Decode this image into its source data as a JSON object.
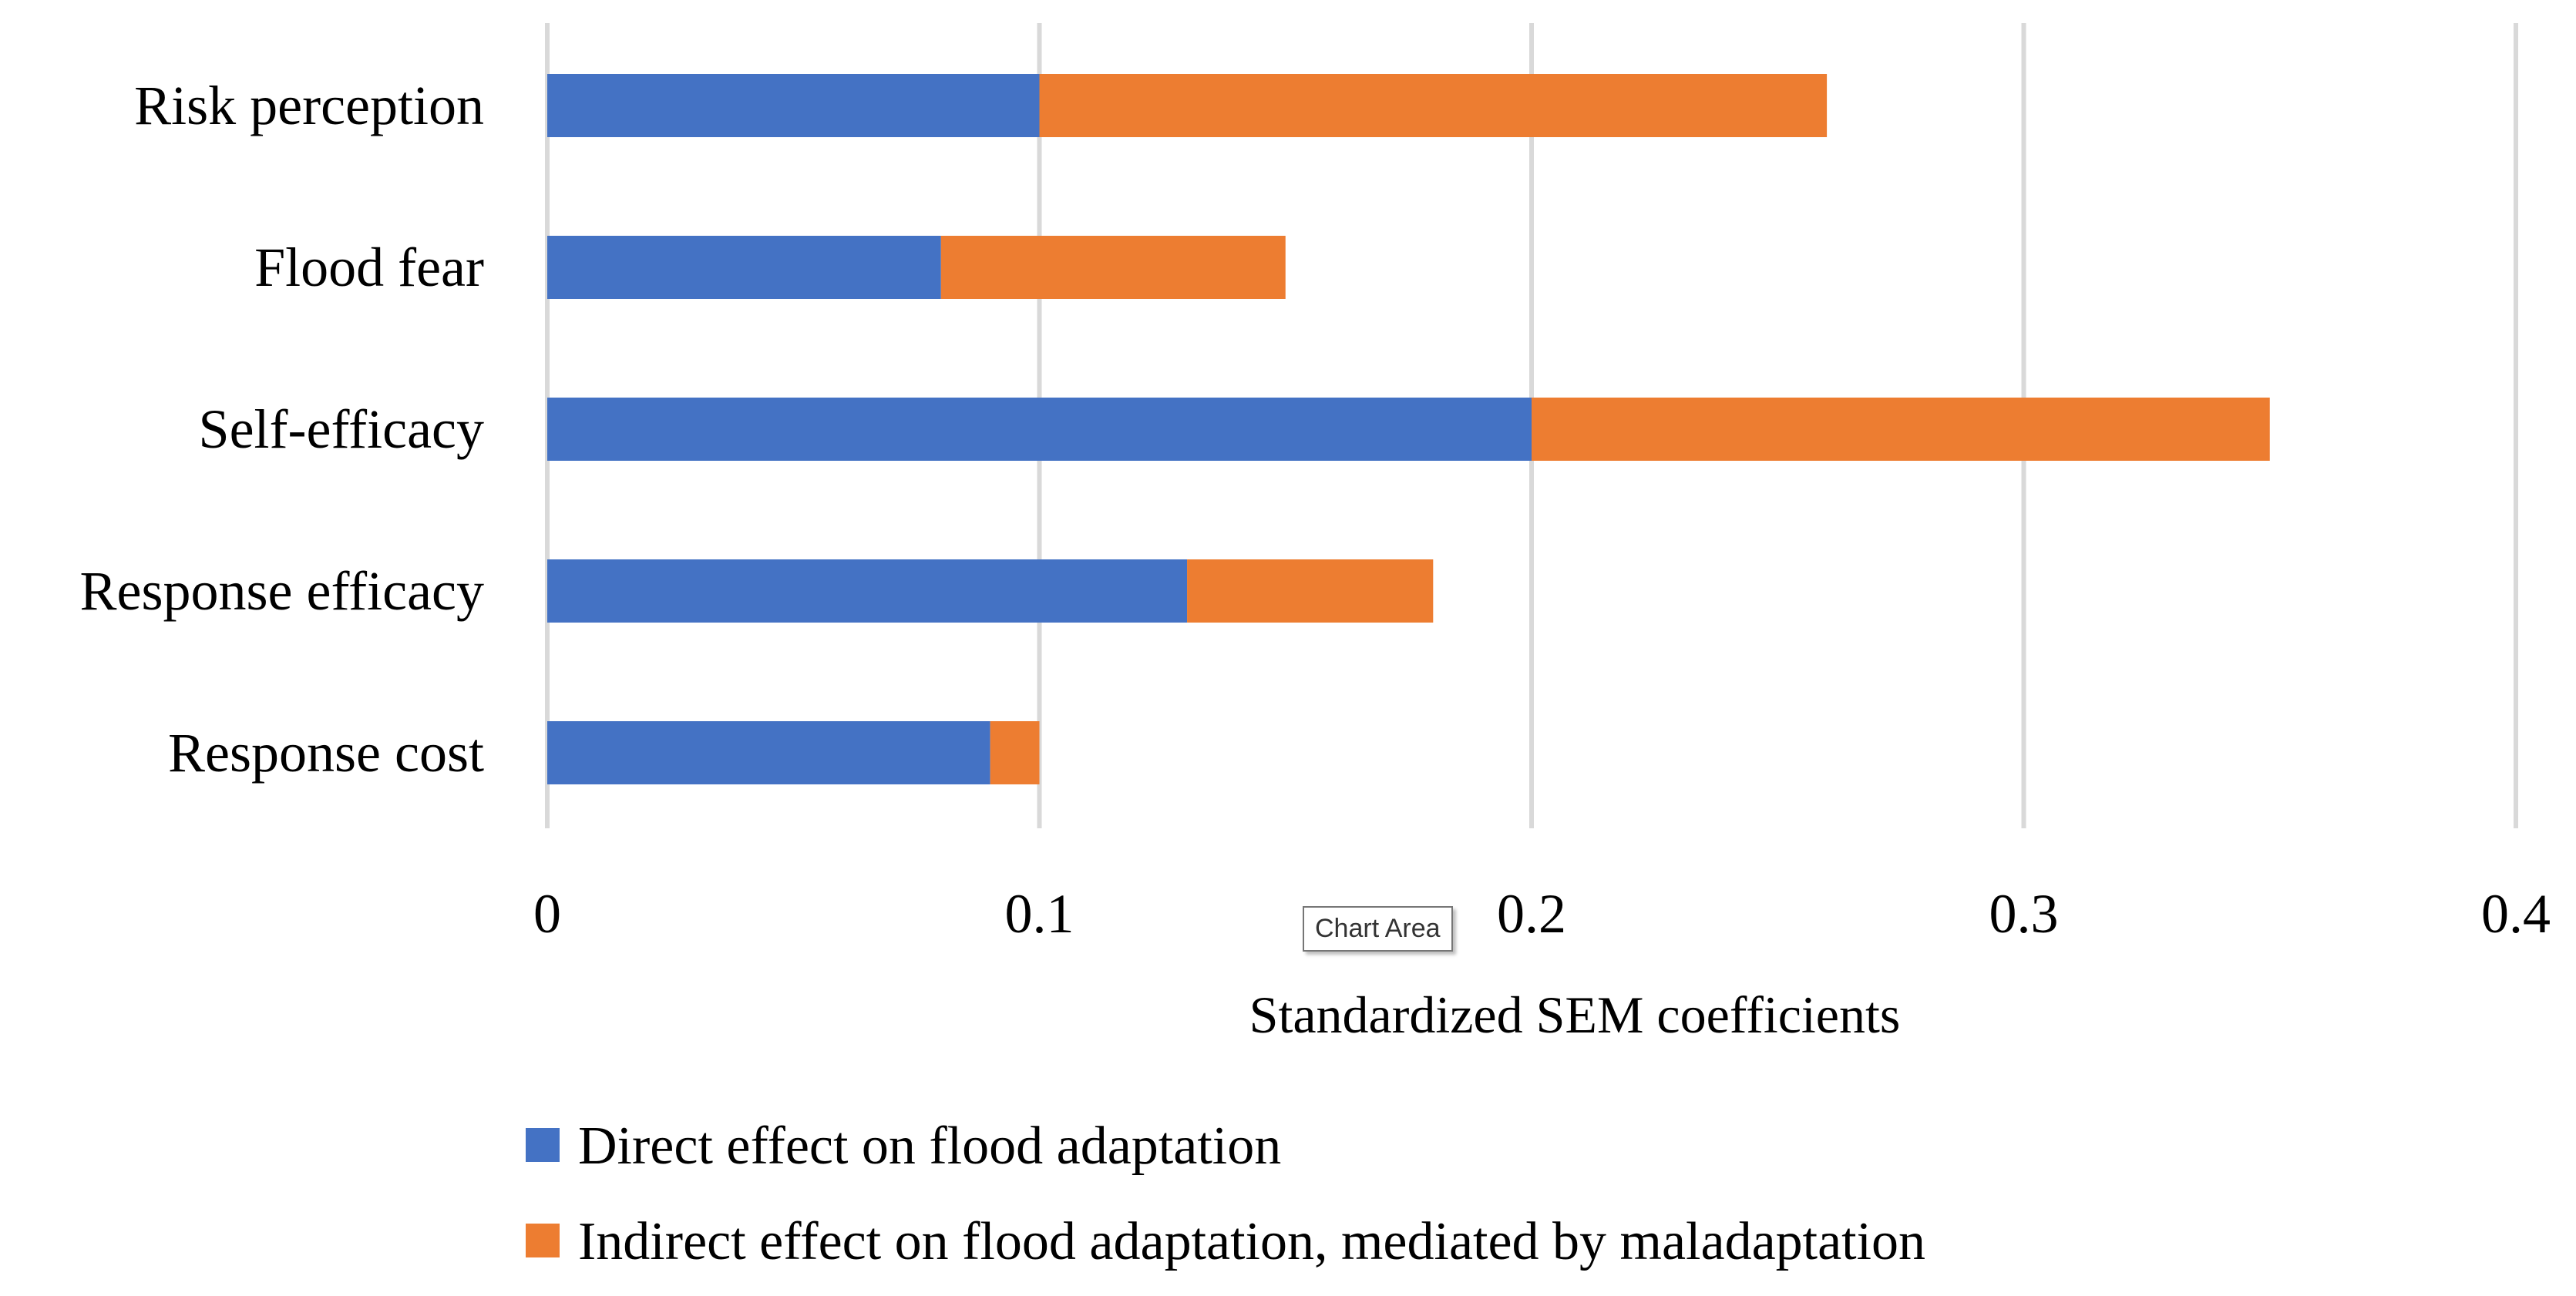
{
  "chart_data": {
    "type": "bar",
    "orientation": "horizontal",
    "stacked": true,
    "categories": [
      "Risk perception",
      "Flood fear ",
      "Self-efficacy",
      "Response efficacy",
      "Response cost"
    ],
    "series": [
      {
        "name": "Direct effect on flood adaptation",
        "color": "#4472c4",
        "values": [
          0.1,
          0.08,
          0.2,
          0.13,
          0.09
        ]
      },
      {
        "name": "Indirect effect on flood adaptation, mediated by maladaptation",
        "color": "#ed7d31",
        "values": [
          0.16,
          0.07,
          0.15,
          0.05,
          0.01
        ]
      }
    ],
    "xlabel": "Standardized SEM coefficients",
    "ylabel": "",
    "xlim": [
      0,
      0.4
    ],
    "xticks": [
      0,
      0.1,
      0.2,
      0.3,
      0.4
    ],
    "xtick_labels": [
      "0",
      "0.1",
      "0.2",
      "0.3",
      "0.4"
    ],
    "gridlines": true,
    "legend_position": "bottom-left"
  },
  "tooltip": {
    "label": "Chart Area"
  }
}
